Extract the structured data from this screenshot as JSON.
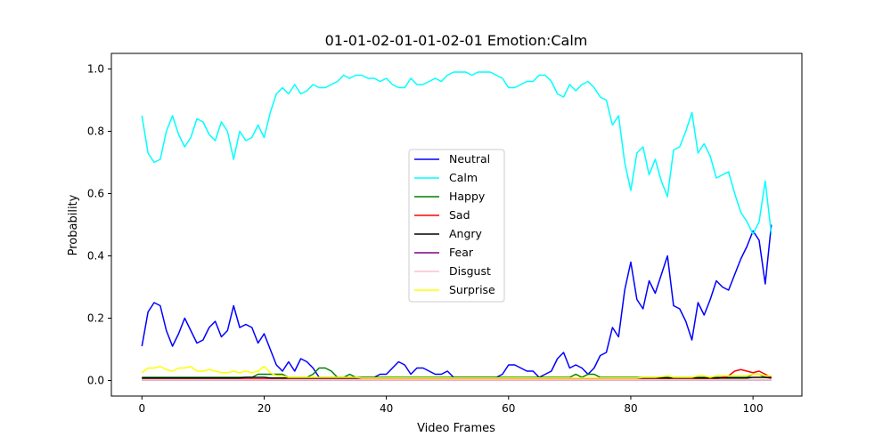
{
  "chart_data": {
    "type": "line",
    "title": "01-01-02-01-01-02-01 Emotion:Calm",
    "xlabel": "Video Frames",
    "ylabel": "Probability",
    "xlim": [
      -5,
      108
    ],
    "ylim": [
      -0.05,
      1.05
    ],
    "xticks": [
      0,
      20,
      40,
      60,
      80,
      100
    ],
    "yticks": [
      0.0,
      0.2,
      0.4,
      0.6,
      0.8,
      1.0
    ],
    "ytick_labels": [
      "0.0",
      "0.2",
      "0.4",
      "0.6",
      "0.8",
      "1.0"
    ],
    "grid": false,
    "legend_position": "center",
    "series": [
      {
        "name": "Neutral",
        "color": "#0000ff",
        "values": [
          0.11,
          0.22,
          0.25,
          0.24,
          0.16,
          0.11,
          0.15,
          0.2,
          0.16,
          0.12,
          0.13,
          0.17,
          0.19,
          0.14,
          0.16,
          0.24,
          0.17,
          0.18,
          0.17,
          0.12,
          0.15,
          0.1,
          0.05,
          0.03,
          0.06,
          0.03,
          0.07,
          0.06,
          0.04,
          0.01,
          0.01,
          0.01,
          0.01,
          0.01,
          0.01,
          0.01,
          0.01,
          0.01,
          0.01,
          0.02,
          0.02,
          0.04,
          0.06,
          0.05,
          0.02,
          0.04,
          0.04,
          0.03,
          0.02,
          0.02,
          0.03,
          0.01,
          0.01,
          0.01,
          0.01,
          0.01,
          0.01,
          0.01,
          0.01,
          0.02,
          0.05,
          0.05,
          0.04,
          0.03,
          0.03,
          0.01,
          0.02,
          0.03,
          0.07,
          0.09,
          0.04,
          0.05,
          0.04,
          0.02,
          0.04,
          0.08,
          0.09,
          0.17,
          0.14,
          0.29,
          0.38,
          0.26,
          0.23,
          0.32,
          0.28,
          0.34,
          0.4,
          0.24,
          0.23,
          0.19,
          0.13,
          0.25,
          0.21,
          0.26,
          0.32,
          0.3,
          0.29,
          0.34,
          0.39,
          0.43,
          0.48,
          0.45,
          0.31,
          0.5
        ]
      },
      {
        "name": "Calm",
        "color": "#00ffff",
        "values": [
          0.85,
          0.73,
          0.7,
          0.71,
          0.8,
          0.85,
          0.79,
          0.75,
          0.78,
          0.84,
          0.83,
          0.79,
          0.77,
          0.83,
          0.8,
          0.71,
          0.8,
          0.77,
          0.78,
          0.82,
          0.78,
          0.86,
          0.92,
          0.94,
          0.92,
          0.95,
          0.92,
          0.93,
          0.95,
          0.94,
          0.94,
          0.95,
          0.96,
          0.98,
          0.97,
          0.98,
          0.98,
          0.97,
          0.97,
          0.96,
          0.97,
          0.95,
          0.94,
          0.94,
          0.97,
          0.95,
          0.95,
          0.96,
          0.97,
          0.96,
          0.98,
          0.99,
          0.99,
          0.99,
          0.98,
          0.99,
          0.99,
          0.99,
          0.98,
          0.97,
          0.94,
          0.94,
          0.95,
          0.96,
          0.96,
          0.98,
          0.98,
          0.96,
          0.92,
          0.91,
          0.95,
          0.93,
          0.95,
          0.96,
          0.94,
          0.91,
          0.9,
          0.82,
          0.85,
          0.7,
          0.61,
          0.73,
          0.75,
          0.66,
          0.71,
          0.64,
          0.59,
          0.74,
          0.75,
          0.8,
          0.86,
          0.73,
          0.76,
          0.72,
          0.65,
          0.66,
          0.67,
          0.6,
          0.54,
          0.51,
          0.47,
          0.51,
          0.64,
          0.47
        ]
      },
      {
        "name": "Happy",
        "color": "#008000",
        "values": [
          0.01,
          0.01,
          0.01,
          0.01,
          0.01,
          0.01,
          0.01,
          0.01,
          0.01,
          0.01,
          0.01,
          0.01,
          0.01,
          0.01,
          0.01,
          0.01,
          0.01,
          0.01,
          0.01,
          0.02,
          0.02,
          0.02,
          0.02,
          0.02,
          0.01,
          0.01,
          0.01,
          0.01,
          0.02,
          0.04,
          0.04,
          0.03,
          0.01,
          0.01,
          0.02,
          0.01,
          0.01,
          0.01,
          0.01,
          0.01,
          0.01,
          0.01,
          0.01,
          0.01,
          0.01,
          0.01,
          0.01,
          0.01,
          0.01,
          0.01,
          0.01,
          0.01,
          0.01,
          0.01,
          0.01,
          0.01,
          0.01,
          0.01,
          0.01,
          0.01,
          0.01,
          0.01,
          0.01,
          0.01,
          0.01,
          0.01,
          0.01,
          0.01,
          0.01,
          0.01,
          0.01,
          0.02,
          0.01,
          0.02,
          0.02,
          0.01,
          0.01,
          0.01,
          0.01,
          0.01,
          0.01,
          0.01,
          0.01,
          0.01,
          0.01,
          0.01,
          0.01,
          0.01,
          0.01,
          0.01,
          0.01,
          0.01,
          0.01,
          0.01,
          0.01,
          0.01,
          0.01,
          0.01,
          0.01,
          0.01,
          0.02,
          0.02,
          0.01,
          0.01
        ]
      },
      {
        "name": "Sad",
        "color": "#ff0000",
        "values": [
          0.005,
          0.005,
          0.005,
          0.005,
          0.005,
          0.005,
          0.005,
          0.005,
          0.005,
          0.005,
          0.005,
          0.005,
          0.005,
          0.005,
          0.005,
          0.005,
          0.005,
          0.005,
          0.005,
          0.005,
          0.005,
          0.005,
          0.005,
          0.005,
          0.005,
          0.005,
          0.005,
          0.005,
          0.005,
          0.005,
          0.005,
          0.005,
          0.005,
          0.005,
          0.005,
          0.005,
          0.005,
          0.005,
          0.005,
          0.005,
          0.005,
          0.005,
          0.005,
          0.005,
          0.005,
          0.005,
          0.005,
          0.005,
          0.005,
          0.005,
          0.005,
          0.005,
          0.005,
          0.005,
          0.005,
          0.005,
          0.005,
          0.005,
          0.005,
          0.005,
          0.005,
          0.005,
          0.005,
          0.005,
          0.005,
          0.005,
          0.005,
          0.005,
          0.005,
          0.005,
          0.005,
          0.005,
          0.005,
          0.005,
          0.005,
          0.005,
          0.005,
          0.005,
          0.005,
          0.005,
          0.005,
          0.005,
          0.005,
          0.005,
          0.005,
          0.005,
          0.005,
          0.005,
          0.005,
          0.005,
          0.005,
          0.005,
          0.005,
          0.005,
          0.005,
          0.01,
          0.015,
          0.03,
          0.035,
          0.03,
          0.025,
          0.03,
          0.02,
          0.01
        ]
      },
      {
        "name": "Angry",
        "color": "#000000",
        "values": [
          0.008,
          0.008,
          0.008,
          0.008,
          0.008,
          0.008,
          0.008,
          0.008,
          0.008,
          0.008,
          0.008,
          0.008,
          0.008,
          0.008,
          0.008,
          0.008,
          0.008,
          0.01,
          0.01,
          0.01,
          0.01,
          0.008,
          0.008,
          0.008,
          0.008,
          0.008,
          0.008,
          0.008,
          0.008,
          0.008,
          0.008,
          0.008,
          0.008,
          0.008,
          0.008,
          0.008,
          0.008,
          0.008,
          0.008,
          0.008,
          0.008,
          0.008,
          0.008,
          0.008,
          0.008,
          0.008,
          0.008,
          0.008,
          0.008,
          0.008,
          0.008,
          0.008,
          0.008,
          0.008,
          0.008,
          0.008,
          0.008,
          0.008,
          0.008,
          0.008,
          0.008,
          0.008,
          0.008,
          0.008,
          0.008,
          0.008,
          0.008,
          0.008,
          0.008,
          0.008,
          0.008,
          0.008,
          0.008,
          0.008,
          0.008,
          0.008,
          0.008,
          0.008,
          0.008,
          0.008,
          0.008,
          0.008,
          0.008,
          0.008,
          0.008,
          0.008,
          0.008,
          0.008,
          0.008,
          0.008,
          0.008,
          0.008,
          0.008,
          0.008,
          0.008,
          0.008,
          0.008,
          0.008,
          0.008,
          0.008,
          0.01,
          0.01,
          0.01,
          0.008
        ]
      },
      {
        "name": "Fear",
        "color": "#800080",
        "values": [
          0.002,
          0.002,
          0.002,
          0.002,
          0.002,
          0.002,
          0.002,
          0.002,
          0.002,
          0.002,
          0.002,
          0.002,
          0.002,
          0.002,
          0.002,
          0.002,
          0.002,
          0.002,
          0.002,
          0.002,
          0.002,
          0.002,
          0.002,
          0.002,
          0.002,
          0.002,
          0.002,
          0.002,
          0.002,
          0.002,
          0.002,
          0.002,
          0.002,
          0.002,
          0.002,
          0.002,
          0.002,
          0.002,
          0.002,
          0.002,
          0.002,
          0.002,
          0.002,
          0.002,
          0.002,
          0.002,
          0.002,
          0.002,
          0.002,
          0.002,
          0.002,
          0.002,
          0.002,
          0.002,
          0.002,
          0.002,
          0.002,
          0.002,
          0.002,
          0.002,
          0.002,
          0.002,
          0.002,
          0.002,
          0.002,
          0.002,
          0.002,
          0.002,
          0.002,
          0.002,
          0.002,
          0.002,
          0.002,
          0.002,
          0.002,
          0.002,
          0.002,
          0.002,
          0.002,
          0.002,
          0.002,
          0.002,
          0.002,
          0.002,
          0.002,
          0.002,
          0.002,
          0.002,
          0.002,
          0.002,
          0.002,
          0.002,
          0.002,
          0.002,
          0.002,
          0.002,
          0.002,
          0.002,
          0.002,
          0.002,
          0.002,
          0.002,
          0.002,
          0.002
        ]
      },
      {
        "name": "Disgust",
        "color": "#ffc0cb",
        "values": [
          0.003,
          0.003,
          0.003,
          0.003,
          0.003,
          0.003,
          0.003,
          0.003,
          0.003,
          0.003,
          0.003,
          0.003,
          0.003,
          0.003,
          0.003,
          0.003,
          0.003,
          0.003,
          0.003,
          0.003,
          0.003,
          0.003,
          0.003,
          0.003,
          0.003,
          0.003,
          0.003,
          0.003,
          0.003,
          0.003,
          0.003,
          0.003,
          0.003,
          0.003,
          0.003,
          0.003,
          0.003,
          0.003,
          0.003,
          0.003,
          0.003,
          0.003,
          0.003,
          0.003,
          0.003,
          0.003,
          0.003,
          0.003,
          0.003,
          0.003,
          0.003,
          0.003,
          0.003,
          0.003,
          0.003,
          0.003,
          0.003,
          0.003,
          0.003,
          0.003,
          0.003,
          0.003,
          0.003,
          0.003,
          0.003,
          0.003,
          0.003,
          0.003,
          0.003,
          0.003,
          0.003,
          0.003,
          0.003,
          0.003,
          0.003,
          0.003,
          0.003,
          0.003,
          0.003,
          0.003,
          0.003,
          0.003,
          0.003,
          0.003,
          0.003,
          0.003,
          0.003,
          0.003,
          0.003,
          0.003,
          0.003,
          0.003,
          0.003,
          0.003,
          0.003,
          0.003,
          0.003,
          0.003,
          0.003,
          0.003,
          0.003,
          0.003,
          0.003,
          0.003
        ]
      },
      {
        "name": "Surprise",
        "color": "#ffff00",
        "values": [
          0.025,
          0.04,
          0.04,
          0.045,
          0.035,
          0.03,
          0.04,
          0.04,
          0.045,
          0.03,
          0.03,
          0.035,
          0.03,
          0.025,
          0.025,
          0.03,
          0.025,
          0.03,
          0.025,
          0.03,
          0.045,
          0.025,
          0.015,
          0.015,
          0.01,
          0.01,
          0.01,
          0.01,
          0.01,
          0.01,
          0.01,
          0.01,
          0.01,
          0.01,
          0.01,
          0.01,
          0.008,
          0.008,
          0.008,
          0.008,
          0.008,
          0.008,
          0.008,
          0.008,
          0.008,
          0.008,
          0.008,
          0.008,
          0.008,
          0.008,
          0.008,
          0.008,
          0.008,
          0.008,
          0.008,
          0.008,
          0.008,
          0.008,
          0.008,
          0.008,
          0.008,
          0.008,
          0.008,
          0.008,
          0.008,
          0.008,
          0.008,
          0.008,
          0.008,
          0.008,
          0.008,
          0.008,
          0.008,
          0.008,
          0.008,
          0.008,
          0.008,
          0.008,
          0.008,
          0.008,
          0.008,
          0.008,
          0.01,
          0.01,
          0.01,
          0.012,
          0.015,
          0.01,
          0.01,
          0.01,
          0.01,
          0.015,
          0.015,
          0.01,
          0.015,
          0.015,
          0.015,
          0.015,
          0.015,
          0.015,
          0.02,
          0.02,
          0.015,
          0.015
        ]
      }
    ]
  }
}
